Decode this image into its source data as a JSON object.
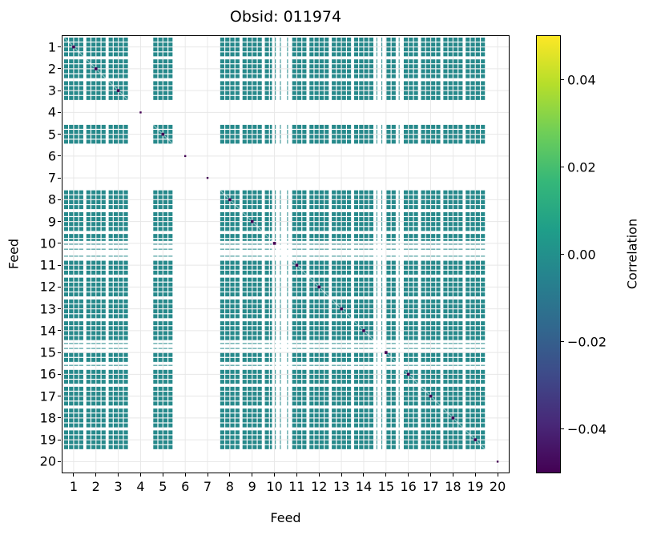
{
  "figure": {
    "background": "#ffffff"
  },
  "chart_data": {
    "type": "heatmap",
    "title": "Obsid: 011974",
    "xlabel": "Feed",
    "ylabel": "Feed",
    "x_tick_labels": [
      "1",
      "2",
      "3",
      "4",
      "5",
      "6",
      "7",
      "8",
      "9",
      "10",
      "11",
      "12",
      "13",
      "14",
      "15",
      "16",
      "17",
      "18",
      "19",
      "20"
    ],
    "y_tick_labels": [
      "1",
      "2",
      "3",
      "4",
      "5",
      "6",
      "7",
      "8",
      "9",
      "10",
      "11",
      "12",
      "13",
      "14",
      "15",
      "16",
      "17",
      "18",
      "19",
      "20"
    ],
    "feeds": 20,
    "bands_per_feed": 4,
    "present_feeds": [
      1,
      2,
      3,
      5,
      8,
      9,
      10,
      11,
      12,
      13,
      14,
      15,
      16,
      17,
      18,
      19
    ],
    "missing_feeds": [
      4,
      6,
      7,
      20
    ],
    "partial_band_widths": {
      "10": [
        1,
        0.6,
        0.3,
        0.25
      ],
      "11": [
        0.25,
        1,
        1,
        1
      ],
      "15": [
        0.3,
        0.35,
        1,
        1
      ],
      "16": [
        0.35,
        1,
        1,
        1
      ]
    },
    "off_diagonal_value": 0.002,
    "diagonal_value": -0.05,
    "cell_color": "#26898b",
    "diagonal_color": "#440154",
    "grid_color": "#e7e7e7",
    "grid": true,
    "colorbar": {
      "label": "Correlation",
      "vmin": -0.05,
      "vmax": 0.05,
      "tick_values": [
        0.04,
        0.02,
        0,
        -0.02,
        -0.04
      ],
      "tick_labels": [
        "0.04",
        "0.02",
        "0.00",
        "−0.02",
        "−0.04"
      ],
      "colormap": "viridis",
      "gradient_stops": [
        "#440154",
        "#482878",
        "#3e4a89",
        "#31688e",
        "#26828e",
        "#1f9e89",
        "#35b779",
        "#6ece58",
        "#b5de2b",
        "#fde725"
      ]
    }
  }
}
